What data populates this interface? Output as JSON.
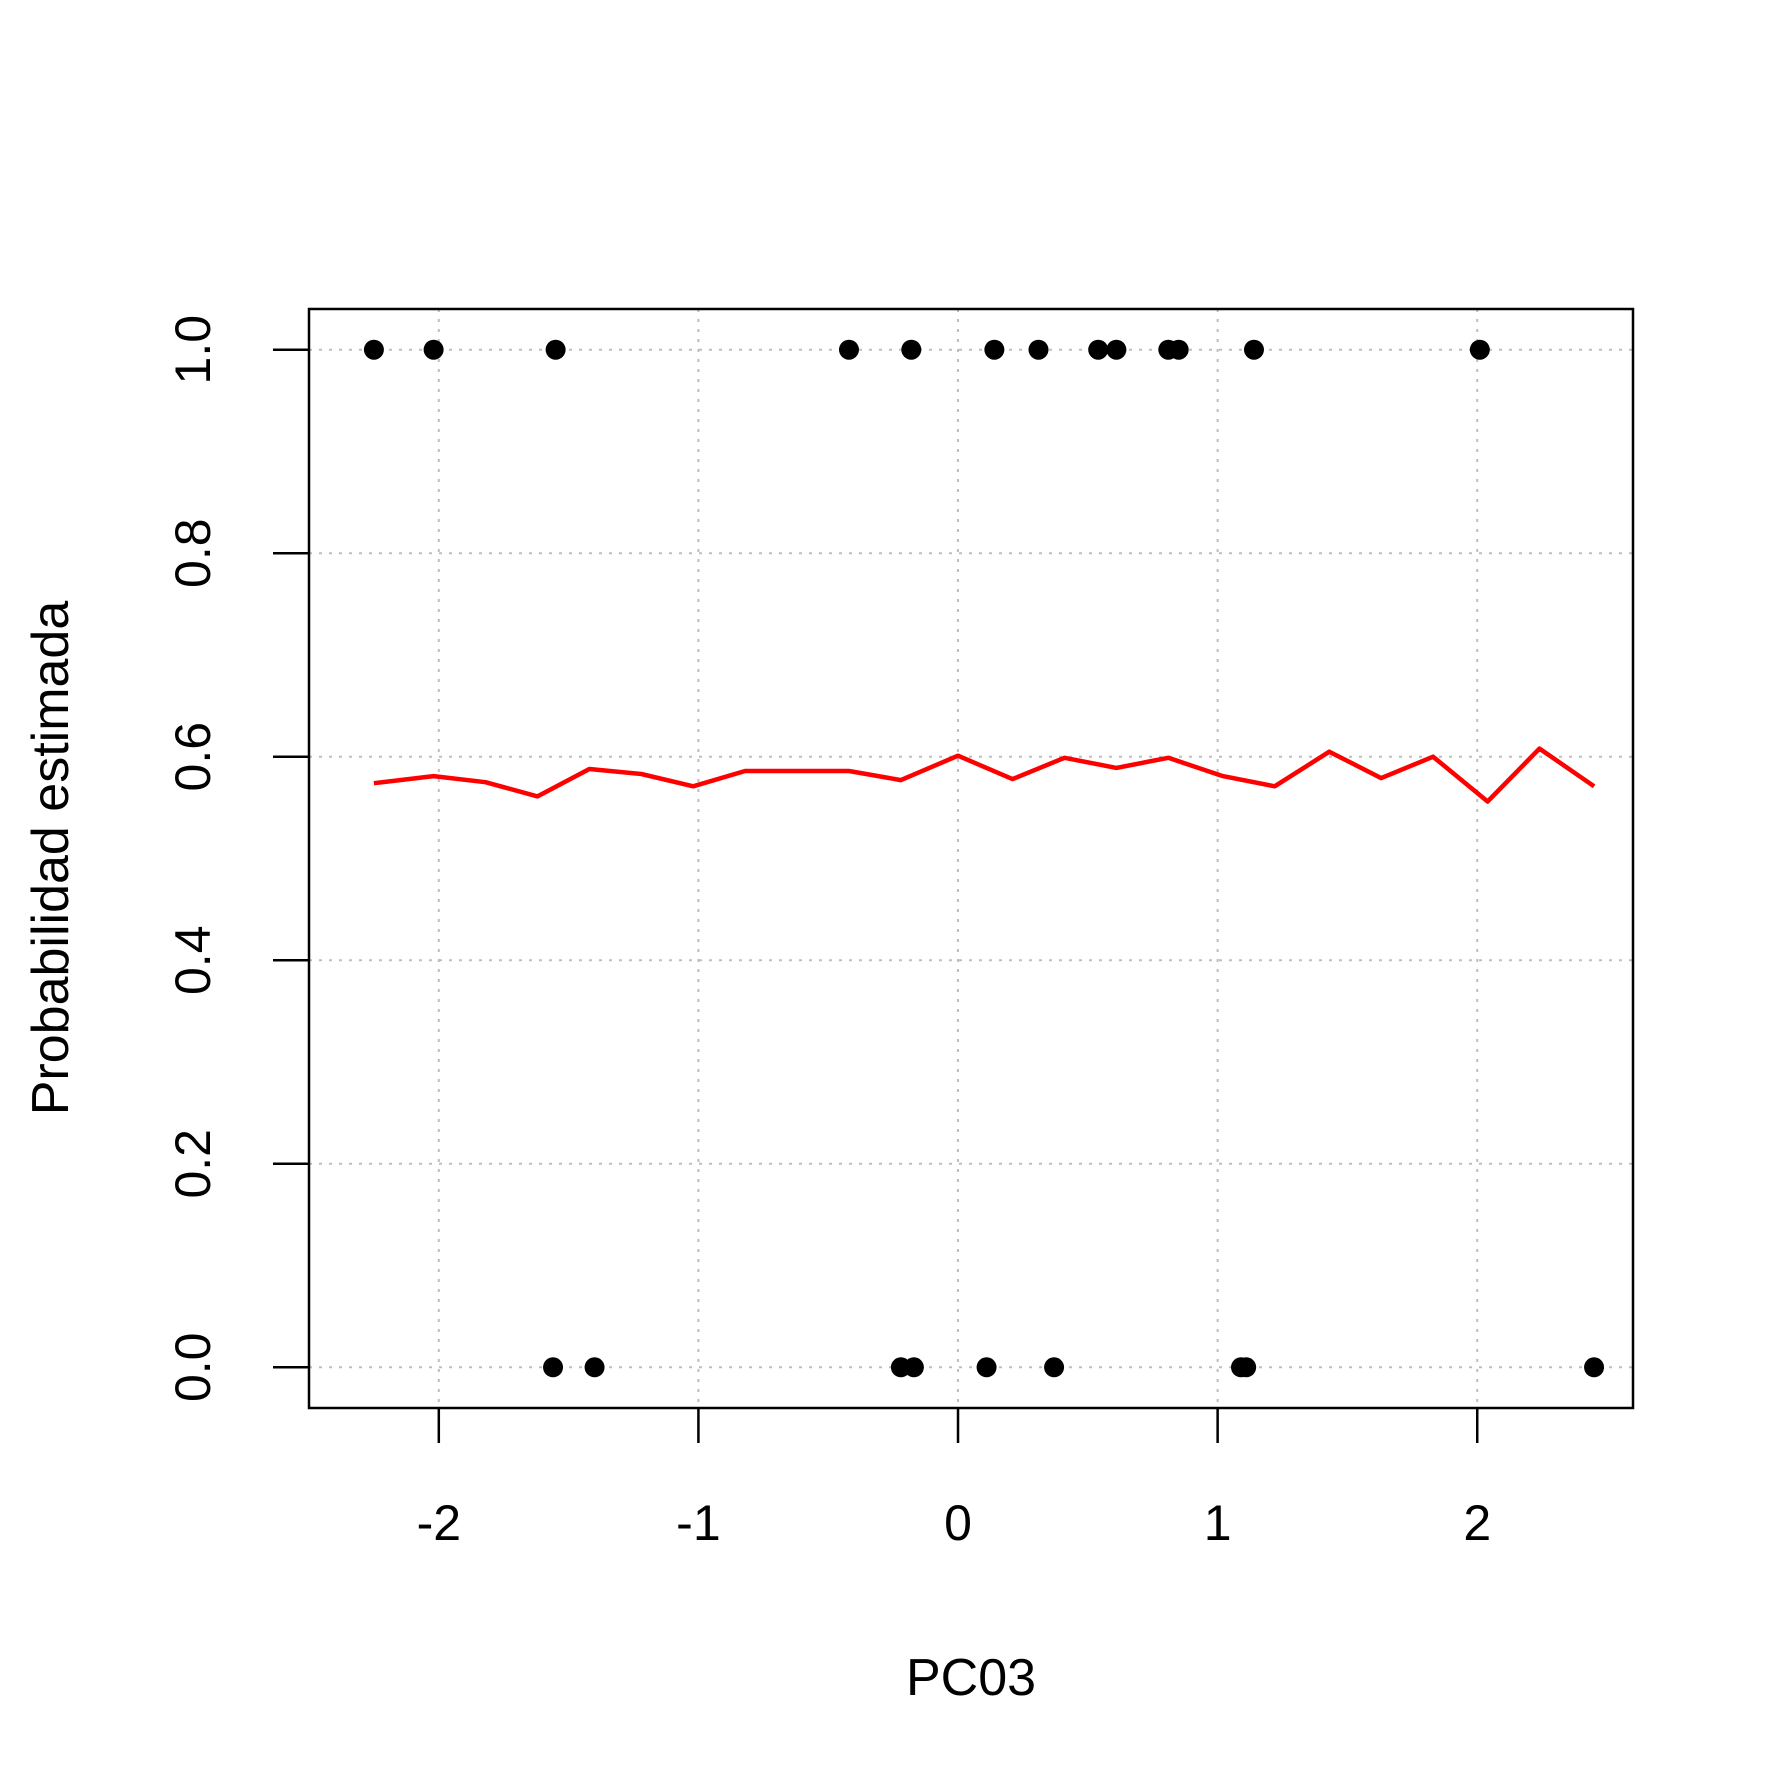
{
  "chart_data": {
    "type": "scatter",
    "xlabel": "PC03",
    "ylabel": "Probabilidad estimada",
    "xlim": [
      -2.5,
      2.6
    ],
    "ylim": [
      -0.04,
      1.04
    ],
    "grid": true,
    "x_ticks": [
      -2,
      -1,
      0,
      1,
      2
    ],
    "x_tick_labels": [
      "-2",
      "-1",
      "0",
      "1",
      "2"
    ],
    "y_ticks": [
      0.0,
      0.2,
      0.4,
      0.6,
      0.8,
      1.0
    ],
    "y_tick_labels": [
      "0.0",
      "0.2",
      "0.4",
      "0.6",
      "0.8",
      "1.0"
    ],
    "colors": {
      "points": "#000000",
      "line": "#ff0000",
      "grid": "#bebebe"
    },
    "points": [
      {
        "x": -2.25,
        "y": 1
      },
      {
        "x": -2.02,
        "y": 1
      },
      {
        "x": -1.55,
        "y": 1
      },
      {
        "x": -0.42,
        "y": 1
      },
      {
        "x": -0.18,
        "y": 1
      },
      {
        "x": 0.14,
        "y": 1
      },
      {
        "x": 0.31,
        "y": 1
      },
      {
        "x": 0.54,
        "y": 1
      },
      {
        "x": 0.61,
        "y": 1
      },
      {
        "x": 0.81,
        "y": 1
      },
      {
        "x": 0.85,
        "y": 1
      },
      {
        "x": 1.14,
        "y": 1
      },
      {
        "x": 2.01,
        "y": 1
      },
      {
        "x": -1.56,
        "y": 0
      },
      {
        "x": -1.4,
        "y": 0
      },
      {
        "x": -0.22,
        "y": 0
      },
      {
        "x": -0.17,
        "y": 0
      },
      {
        "x": 0.11,
        "y": 0
      },
      {
        "x": 0.37,
        "y": 0
      },
      {
        "x": 1.09,
        "y": 0
      },
      {
        "x": 1.11,
        "y": 0
      },
      {
        "x": 2.45,
        "y": 0
      }
    ],
    "series": [
      {
        "x": [
          -2.25,
          -2.02,
          -1.82,
          -1.62,
          -1.42,
          -1.22,
          -1.02,
          -0.82,
          -0.62,
          -0.42,
          -0.22,
          0.0,
          0.21,
          0.41,
          0.61,
          0.81,
          1.02,
          1.22,
          1.43,
          1.63,
          1.83,
          2.04,
          2.24,
          2.45
        ],
        "y": [
          0.574,
          0.581,
          0.575,
          0.561,
          0.588,
          0.583,
          0.571,
          0.586,
          0.586,
          0.586,
          0.577,
          0.601,
          0.578,
          0.599,
          0.589,
          0.599,
          0.581,
          0.571,
          0.605,
          0.579,
          0.6,
          0.556,
          0.608,
          0.571
        ]
      }
    ]
  }
}
